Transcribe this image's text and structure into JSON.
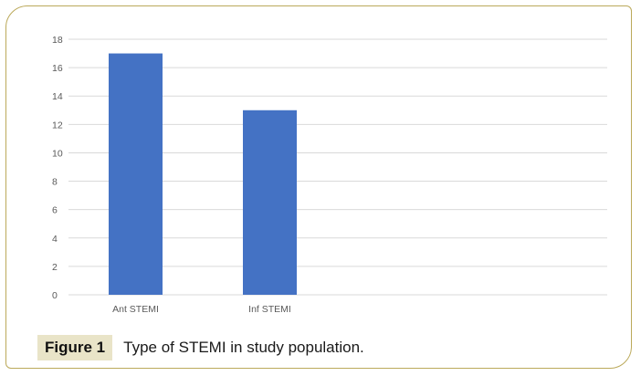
{
  "figure": {
    "label": "Figure 1",
    "caption": "Type of STEMI in study population."
  },
  "chart_data": {
    "type": "bar",
    "categories": [
      "Ant STEMI",
      "Inf STEMI"
    ],
    "values": [
      17,
      13
    ],
    "yticks": [
      0,
      2,
      4,
      6,
      8,
      10,
      12,
      14,
      16,
      18
    ],
    "ylim": [
      0,
      18
    ],
    "grid": true,
    "bar_color": "#4472c4",
    "grid_color": "#d9d9d9",
    "title": "",
    "xlabel": "",
    "ylabel": ""
  }
}
